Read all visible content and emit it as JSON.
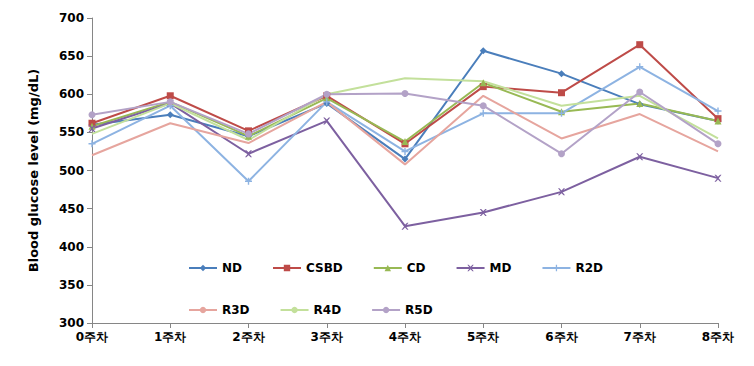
{
  "chart_data": {
    "type": "line",
    "y_label": "Blood glucose level (mg/dL)",
    "categories": [
      "0주차",
      "1주차",
      "2주차",
      "3주차",
      "4주차",
      "5주차",
      "6주차",
      "7주차",
      "8주차"
    ],
    "series": [
      {
        "name": "ND",
        "color": "#4a7ebb",
        "marker": "diamond",
        "values": [
          560,
          573,
          545,
          588,
          515,
          657,
          627,
          587,
          565
        ]
      },
      {
        "name": "CSBD",
        "color": "#be4b48",
        "marker": "square",
        "values": [
          562,
          598,
          552,
          598,
          535,
          610,
          602,
          665,
          568
        ]
      },
      {
        "name": "CD",
        "color": "#98b954",
        "marker": "triangle",
        "values": [
          558,
          590,
          545,
          595,
          538,
          615,
          577,
          588,
          565
        ]
      },
      {
        "name": "MD",
        "color": "#7d60a0",
        "marker": "x",
        "values": [
          555,
          588,
          522,
          565,
          427,
          445,
          472,
          518,
          490
        ]
      },
      {
        "name": "R2D",
        "color": "#8db3e2",
        "marker": "plus",
        "values": [
          535,
          585,
          486,
          590,
          525,
          575,
          575,
          636,
          578
        ]
      },
      {
        "name": "R3D",
        "color": "#e6a59e",
        "marker": "none",
        "values": [
          520,
          562,
          536,
          590,
          508,
          598,
          542,
          574,
          525
        ]
      },
      {
        "name": "R4D",
        "color": "#c3e09b",
        "marker": "none",
        "values": [
          548,
          588,
          540,
          600,
          621,
          617,
          585,
          598,
          542
        ]
      },
      {
        "name": "R5D",
        "color": "#b3a2c7",
        "marker": "circle",
        "values": [
          573,
          590,
          548,
          600,
          601,
          585,
          522,
          603,
          535
        ]
      }
    ],
    "ylim": [
      300,
      700
    ],
    "yticks": [
      300,
      350,
      400,
      450,
      500,
      550,
      600,
      650,
      700
    ],
    "grid": false,
    "legend": "bottom"
  }
}
